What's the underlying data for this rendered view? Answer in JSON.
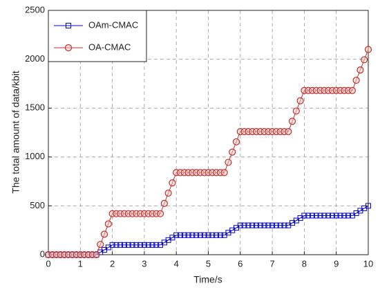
{
  "chart_data": {
    "type": "line",
    "xlabel": "Time/s",
    "ylabel": "The total amount of data/kbit",
    "x": [
      0,
      0.125,
      0.25,
      0.375,
      0.5,
      0.625,
      0.75,
      0.875,
      1,
      1.125,
      1.25,
      1.375,
      1.5,
      1.625,
      1.75,
      1.875,
      2,
      2.125,
      2.25,
      2.375,
      2.5,
      2.625,
      2.75,
      2.875,
      3,
      3.125,
      3.25,
      3.375,
      3.5,
      3.625,
      3.75,
      3.875,
      4,
      4.125,
      4.25,
      4.375,
      4.5,
      4.625,
      4.75,
      4.875,
      5,
      5.125,
      5.25,
      5.375,
      5.5,
      5.625,
      5.75,
      5.875,
      6,
      6.125,
      6.25,
      6.375,
      6.5,
      6.625,
      6.75,
      6.875,
      7,
      7.125,
      7.25,
      7.375,
      7.5,
      7.625,
      7.75,
      7.875,
      8,
      8.125,
      8.25,
      8.375,
      8.5,
      8.625,
      8.75,
      8.875,
      9,
      9.125,
      9.25,
      9.375,
      9.5,
      9.625,
      9.75,
      9.875,
      10
    ],
    "series": [
      {
        "name": "OAm-CMAC",
        "color": "#0000cc",
        "marker": "square",
        "values": [
          0,
          0,
          0,
          0,
          0,
          0,
          0,
          0,
          0,
          0,
          0,
          0,
          0,
          25,
          50,
          75,
          100,
          100,
          100,
          100,
          100,
          100,
          100,
          100,
          100,
          100,
          100,
          100,
          100,
          125,
          150,
          175,
          200,
          200,
          200,
          200,
          200,
          200,
          200,
          200,
          200,
          200,
          200,
          200,
          200,
          225,
          250,
          275,
          300,
          300,
          300,
          300,
          300,
          300,
          300,
          300,
          300,
          300,
          300,
          300,
          300,
          325,
          350,
          375,
          400,
          400,
          400,
          400,
          400,
          400,
          400,
          400,
          400,
          400,
          400,
          400,
          400,
          425,
          450,
          475,
          500
        ]
      },
      {
        "name": "OA-CMAC",
        "color": "#c0302a",
        "marker": "circle",
        "values": [
          0,
          0,
          0,
          0,
          0,
          0,
          0,
          0,
          0,
          0,
          0,
          0,
          0,
          105,
          210,
          315,
          420,
          420,
          420,
          420,
          420,
          420,
          420,
          420,
          420,
          420,
          420,
          420,
          420,
          525,
          630,
          735,
          840,
          840,
          840,
          840,
          840,
          840,
          840,
          840,
          840,
          840,
          840,
          840,
          840,
          945,
          1050,
          1155,
          1260,
          1260,
          1260,
          1260,
          1260,
          1260,
          1260,
          1260,
          1260,
          1260,
          1260,
          1260,
          1260,
          1365,
          1470,
          1575,
          1680,
          1680,
          1680,
          1680,
          1680,
          1680,
          1680,
          1680,
          1680,
          1680,
          1680,
          1680,
          1680,
          1785,
          1890,
          1995,
          2100
        ]
      }
    ],
    "xlim": [
      0,
      10
    ],
    "xticks": [
      0,
      1,
      2,
      3,
      4,
      5,
      6,
      7,
      8,
      9,
      10
    ],
    "ylim": [
      0,
      2500
    ],
    "yticks": [
      0,
      500,
      1000,
      1500,
      2000,
      2500
    ],
    "grid": true,
    "legend": "upper left"
  }
}
